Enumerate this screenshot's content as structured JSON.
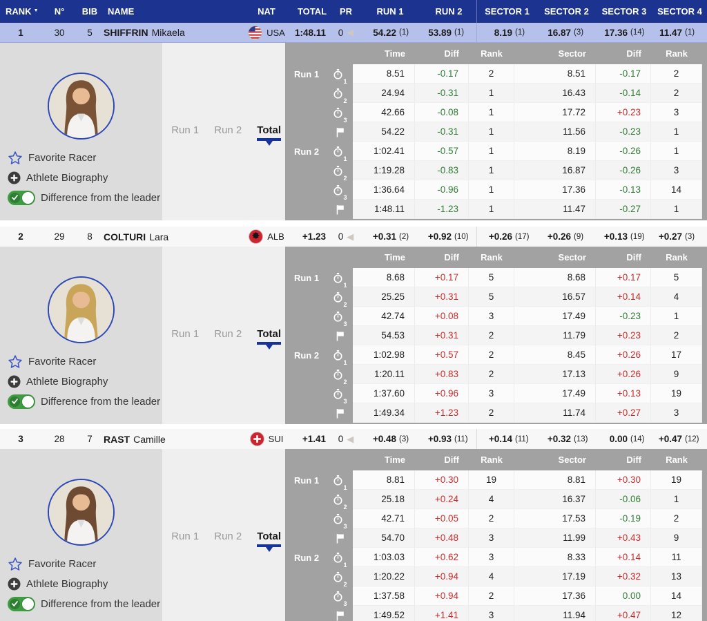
{
  "colors": {
    "header_bg": "#1c3390",
    "highlight_row": "#b5c1ea",
    "panel_dark_gray": "#a2a2a2",
    "panel_light_gray": "#dcdcdc",
    "accent_blue": "#16339c",
    "diff_positive_red": "#cc2b2b",
    "diff_negative_green": "#2e7d32",
    "toggle_green": "#3f9c42"
  },
  "header": {
    "columns": [
      "RANK",
      "N°",
      "BIB",
      "NAME",
      "NAT",
      "TOTAL",
      "PR",
      "RUN 1",
      "RUN 2",
      "SECTOR 1",
      "SECTOR 2",
      "SECTOR 3",
      "SECTOR 4"
    ],
    "sort_column": "RANK"
  },
  "panel": {
    "tabs": [
      {
        "label": "Run 1",
        "active": false
      },
      {
        "label": "Run 2",
        "active": false
      },
      {
        "label": "Total",
        "active": true
      }
    ],
    "links": {
      "favorite": "Favorite Racer",
      "biography": "Athlete Biography",
      "difference": "Difference from the leader"
    },
    "detail_headers": [
      "Time",
      "Diff",
      "Rank",
      "Sector",
      "Diff",
      "Rank"
    ],
    "run_labels": [
      "Run 1",
      "Run 2"
    ]
  },
  "athletes": [
    {
      "rank": "1",
      "number": "30",
      "bib": "5",
      "last_name": "SHIFFRIN",
      "first_name": "Mikaela",
      "nat": "USA",
      "flag": "usa",
      "hair_color": "#7a5236",
      "total": "1:48.11",
      "pr": "0",
      "highlight": true,
      "run1": {
        "v": "54.22",
        "r": "(1)"
      },
      "run2": {
        "v": "53.89",
        "r": "(1)"
      },
      "s1": {
        "v": "8.19",
        "r": "(1)"
      },
      "s2": {
        "v": "16.87",
        "r": "(3)"
      },
      "s3": {
        "v": "17.36",
        "r": "(14)"
      },
      "s4": {
        "v": "11.47",
        "r": "(1)"
      },
      "splits": [
        {
          "run": "Run 1",
          "icon": "stopwatch-1",
          "time": "8.51",
          "diff": "-0.17",
          "rank": "2",
          "sector": "8.51",
          "sdiff": "-0.17",
          "srank": "2"
        },
        {
          "run": "",
          "icon": "stopwatch-2",
          "time": "24.94",
          "diff": "-0.31",
          "rank": "1",
          "sector": "16.43",
          "sdiff": "-0.14",
          "srank": "2"
        },
        {
          "run": "",
          "icon": "stopwatch-3",
          "time": "42.66",
          "diff": "-0.08",
          "rank": "1",
          "sector": "17.72",
          "sdiff": "+0.23",
          "srank": "3"
        },
        {
          "run": "",
          "icon": "flag",
          "time": "54.22",
          "diff": "-0.31",
          "rank": "1",
          "sector": "11.56",
          "sdiff": "-0.23",
          "srank": "1"
        },
        {
          "run": "Run 2",
          "icon": "stopwatch-1",
          "time": "1:02.41",
          "diff": "-0.57",
          "rank": "1",
          "sector": "8.19",
          "sdiff": "-0.26",
          "srank": "1"
        },
        {
          "run": "",
          "icon": "stopwatch-2",
          "time": "1:19.28",
          "diff": "-0.83",
          "rank": "1",
          "sector": "16.87",
          "sdiff": "-0.26",
          "srank": "3"
        },
        {
          "run": "",
          "icon": "stopwatch-3",
          "time": "1:36.64",
          "diff": "-0.96",
          "rank": "1",
          "sector": "17.36",
          "sdiff": "-0.13",
          "srank": "14"
        },
        {
          "run": "",
          "icon": "flag",
          "time": "1:48.11",
          "diff": "-1.23",
          "rank": "1",
          "sector": "11.47",
          "sdiff": "-0.27",
          "srank": "1"
        }
      ]
    },
    {
      "rank": "2",
      "number": "29",
      "bib": "8",
      "last_name": "COLTURI",
      "first_name": "Lara",
      "nat": "ALB",
      "flag": "alb",
      "hair_color": "#c9a55a",
      "total": "+1.23",
      "pr": "0",
      "highlight": false,
      "run1": {
        "v": "+0.31",
        "r": "(2)"
      },
      "run2": {
        "v": "+0.92",
        "r": "(10)"
      },
      "s1": {
        "v": "+0.26",
        "r": "(17)"
      },
      "s2": {
        "v": "+0.26",
        "r": "(9)"
      },
      "s3": {
        "v": "+0.13",
        "r": "(19)"
      },
      "s4": {
        "v": "+0.27",
        "r": "(3)"
      },
      "splits": [
        {
          "run": "Run 1",
          "icon": "stopwatch-1",
          "time": "8.68",
          "diff": "+0.17",
          "rank": "5",
          "sector": "8.68",
          "sdiff": "+0.17",
          "srank": "5"
        },
        {
          "run": "",
          "icon": "stopwatch-2",
          "time": "25.25",
          "diff": "+0.31",
          "rank": "5",
          "sector": "16.57",
          "sdiff": "+0.14",
          "srank": "4"
        },
        {
          "run": "",
          "icon": "stopwatch-3",
          "time": "42.74",
          "diff": "+0.08",
          "rank": "3",
          "sector": "17.49",
          "sdiff": "-0.23",
          "srank": "1"
        },
        {
          "run": "",
          "icon": "flag",
          "time": "54.53",
          "diff": "+0.31",
          "rank": "2",
          "sector": "11.79",
          "sdiff": "+0.23",
          "srank": "2"
        },
        {
          "run": "Run 2",
          "icon": "stopwatch-1",
          "time": "1:02.98",
          "diff": "+0.57",
          "rank": "2",
          "sector": "8.45",
          "sdiff": "+0.26",
          "srank": "17"
        },
        {
          "run": "",
          "icon": "stopwatch-2",
          "time": "1:20.11",
          "diff": "+0.83",
          "rank": "2",
          "sector": "17.13",
          "sdiff": "+0.26",
          "srank": "9"
        },
        {
          "run": "",
          "icon": "stopwatch-3",
          "time": "1:37.60",
          "diff": "+0.96",
          "rank": "3",
          "sector": "17.49",
          "sdiff": "+0.13",
          "srank": "19"
        },
        {
          "run": "",
          "icon": "flag",
          "time": "1:49.34",
          "diff": "+1.23",
          "rank": "2",
          "sector": "11.74",
          "sdiff": "+0.27",
          "srank": "3"
        }
      ]
    },
    {
      "rank": "3",
      "number": "28",
      "bib": "7",
      "last_name": "RAST",
      "first_name": "Camille",
      "nat": "SUI",
      "flag": "sui",
      "hair_color": "#6e4a32",
      "total": "+1.41",
      "pr": "0",
      "highlight": false,
      "run1": {
        "v": "+0.48",
        "r": "(3)"
      },
      "run2": {
        "v": "+0.93",
        "r": "(11)"
      },
      "s1": {
        "v": "+0.14",
        "r": "(11)"
      },
      "s2": {
        "v": "+0.32",
        "r": "(13)"
      },
      "s3": {
        "v": "0.00",
        "r": "(14)"
      },
      "s4": {
        "v": "+0.47",
        "r": "(12)"
      },
      "splits": [
        {
          "run": "Run 1",
          "icon": "stopwatch-1",
          "time": "8.81",
          "diff": "+0.30",
          "rank": "19",
          "sector": "8.81",
          "sdiff": "+0.30",
          "srank": "19"
        },
        {
          "run": "",
          "icon": "stopwatch-2",
          "time": "25.18",
          "diff": "+0.24",
          "rank": "4",
          "sector": "16.37",
          "sdiff": "-0.06",
          "srank": "1"
        },
        {
          "run": "",
          "icon": "stopwatch-3",
          "time": "42.71",
          "diff": "+0.05",
          "rank": "2",
          "sector": "17.53",
          "sdiff": "-0.19",
          "srank": "2"
        },
        {
          "run": "",
          "icon": "flag",
          "time": "54.70",
          "diff": "+0.48",
          "rank": "3",
          "sector": "11.99",
          "sdiff": "+0.43",
          "srank": "9"
        },
        {
          "run": "Run 2",
          "icon": "stopwatch-1",
          "time": "1:03.03",
          "diff": "+0.62",
          "rank": "3",
          "sector": "8.33",
          "sdiff": "+0.14",
          "srank": "11"
        },
        {
          "run": "",
          "icon": "stopwatch-2",
          "time": "1:20.22",
          "diff": "+0.94",
          "rank": "4",
          "sector": "17.19",
          "sdiff": "+0.32",
          "srank": "13"
        },
        {
          "run": "",
          "icon": "stopwatch-3",
          "time": "1:37.58",
          "diff": "+0.94",
          "rank": "2",
          "sector": "17.36",
          "sdiff": "0.00",
          "srank": "14"
        },
        {
          "run": "",
          "icon": "flag",
          "time": "1:49.52",
          "diff": "+1.41",
          "rank": "3",
          "sector": "11.94",
          "sdiff": "+0.47",
          "srank": "12"
        }
      ]
    }
  ]
}
